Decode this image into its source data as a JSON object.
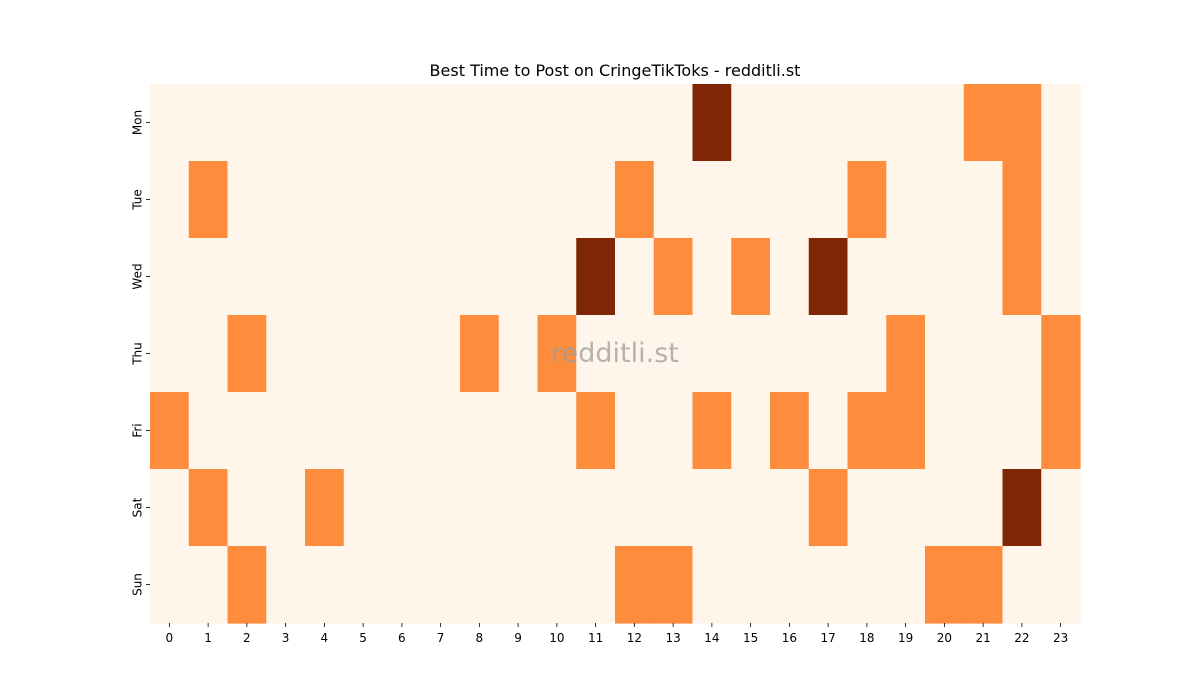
{
  "chart_data": {
    "type": "heatmap",
    "title": "Best Time to Post on CringeTikToks - redditli.st",
    "watermark": "redditli.st",
    "x_categories": [
      "0",
      "1",
      "2",
      "3",
      "4",
      "5",
      "6",
      "7",
      "8",
      "9",
      "10",
      "11",
      "12",
      "13",
      "14",
      "15",
      "16",
      "17",
      "18",
      "19",
      "20",
      "21",
      "22",
      "23"
    ],
    "y_categories": [
      "Mon",
      "Tue",
      "Wed",
      "Thu",
      "Fri",
      "Sat",
      "Sun"
    ],
    "values": [
      [
        0,
        0,
        0,
        0,
        0,
        0,
        0,
        0,
        0,
        0,
        0,
        0,
        0,
        0,
        2,
        0,
        0,
        0,
        0,
        0,
        0,
        1,
        1,
        0
      ],
      [
        0,
        1,
        0,
        0,
        0,
        0,
        0,
        0,
        0,
        0,
        0,
        0,
        1,
        0,
        0,
        0,
        0,
        0,
        1,
        0,
        0,
        0,
        1,
        0
      ],
      [
        0,
        0,
        0,
        0,
        0,
        0,
        0,
        0,
        0,
        0,
        0,
        2,
        0,
        1,
        0,
        1,
        0,
        2,
        0,
        0,
        0,
        0,
        1,
        0
      ],
      [
        0,
        0,
        1,
        0,
        0,
        0,
        0,
        0,
        1,
        0,
        1,
        0,
        0,
        0,
        0,
        0,
        0,
        0,
        0,
        1,
        0,
        0,
        0,
        1
      ],
      [
        1,
        0,
        0,
        0,
        0,
        0,
        0,
        0,
        0,
        0,
        0,
        1,
        0,
        0,
        1,
        0,
        1,
        0,
        1,
        1,
        0,
        0,
        0,
        1
      ],
      [
        0,
        1,
        0,
        0,
        1,
        0,
        0,
        0,
        0,
        0,
        0,
        0,
        0,
        0,
        0,
        0,
        0,
        1,
        0,
        0,
        0,
        0,
        2,
        0
      ],
      [
        0,
        0,
        1,
        0,
        0,
        0,
        0,
        0,
        0,
        0,
        0,
        0,
        1,
        1,
        0,
        0,
        0,
        0,
        0,
        0,
        1,
        1,
        0,
        0
      ]
    ],
    "colorscale": {
      "0": "#fff5eb",
      "1": "#fd8d3c",
      "2": "#7f2704"
    },
    "colorbar": false,
    "grid": false
  }
}
